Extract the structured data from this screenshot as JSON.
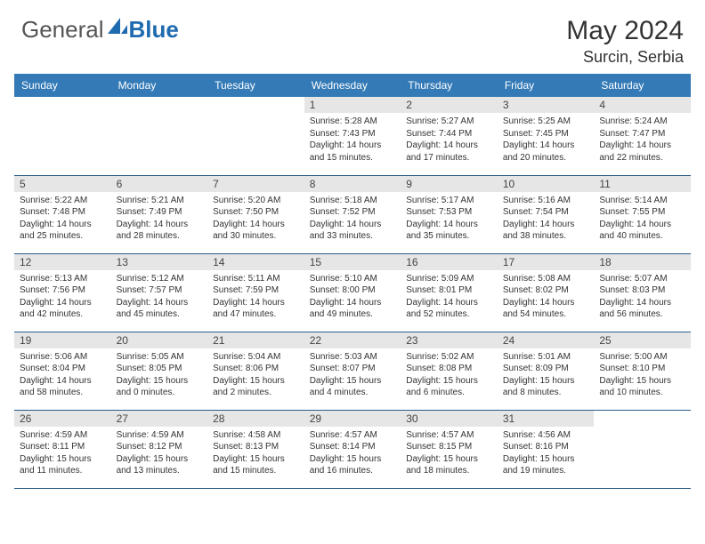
{
  "logo": {
    "text_a": "General",
    "text_b": "Blue"
  },
  "title": {
    "month_year": "May 2024",
    "location": "Surcin, Serbia"
  },
  "colors": {
    "header_bg": "#337ab7",
    "header_text": "#ffffff",
    "daynum_bg": "#e6e6e6",
    "row_border": "#2a5c8a",
    "logo_gray": "#555555",
    "logo_blue": "#1f6bb0"
  },
  "day_names": [
    "Sunday",
    "Monday",
    "Tuesday",
    "Wednesday",
    "Thursday",
    "Friday",
    "Saturday"
  ],
  "weeks": [
    [
      {
        "day": "",
        "sunrise": "",
        "sunset": "",
        "daylight_a": "",
        "daylight_b": ""
      },
      {
        "day": "",
        "sunrise": "",
        "sunset": "",
        "daylight_a": "",
        "daylight_b": ""
      },
      {
        "day": "",
        "sunrise": "",
        "sunset": "",
        "daylight_a": "",
        "daylight_b": ""
      },
      {
        "day": "1",
        "sunrise": "Sunrise: 5:28 AM",
        "sunset": "Sunset: 7:43 PM",
        "daylight_a": "Daylight: 14 hours",
        "daylight_b": "and 15 minutes."
      },
      {
        "day": "2",
        "sunrise": "Sunrise: 5:27 AM",
        "sunset": "Sunset: 7:44 PM",
        "daylight_a": "Daylight: 14 hours",
        "daylight_b": "and 17 minutes."
      },
      {
        "day": "3",
        "sunrise": "Sunrise: 5:25 AM",
        "sunset": "Sunset: 7:45 PM",
        "daylight_a": "Daylight: 14 hours",
        "daylight_b": "and 20 minutes."
      },
      {
        "day": "4",
        "sunrise": "Sunrise: 5:24 AM",
        "sunset": "Sunset: 7:47 PM",
        "daylight_a": "Daylight: 14 hours",
        "daylight_b": "and 22 minutes."
      }
    ],
    [
      {
        "day": "5",
        "sunrise": "Sunrise: 5:22 AM",
        "sunset": "Sunset: 7:48 PM",
        "daylight_a": "Daylight: 14 hours",
        "daylight_b": "and 25 minutes."
      },
      {
        "day": "6",
        "sunrise": "Sunrise: 5:21 AM",
        "sunset": "Sunset: 7:49 PM",
        "daylight_a": "Daylight: 14 hours",
        "daylight_b": "and 28 minutes."
      },
      {
        "day": "7",
        "sunrise": "Sunrise: 5:20 AM",
        "sunset": "Sunset: 7:50 PM",
        "daylight_a": "Daylight: 14 hours",
        "daylight_b": "and 30 minutes."
      },
      {
        "day": "8",
        "sunrise": "Sunrise: 5:18 AM",
        "sunset": "Sunset: 7:52 PM",
        "daylight_a": "Daylight: 14 hours",
        "daylight_b": "and 33 minutes."
      },
      {
        "day": "9",
        "sunrise": "Sunrise: 5:17 AM",
        "sunset": "Sunset: 7:53 PM",
        "daylight_a": "Daylight: 14 hours",
        "daylight_b": "and 35 minutes."
      },
      {
        "day": "10",
        "sunrise": "Sunrise: 5:16 AM",
        "sunset": "Sunset: 7:54 PM",
        "daylight_a": "Daylight: 14 hours",
        "daylight_b": "and 38 minutes."
      },
      {
        "day": "11",
        "sunrise": "Sunrise: 5:14 AM",
        "sunset": "Sunset: 7:55 PM",
        "daylight_a": "Daylight: 14 hours",
        "daylight_b": "and 40 minutes."
      }
    ],
    [
      {
        "day": "12",
        "sunrise": "Sunrise: 5:13 AM",
        "sunset": "Sunset: 7:56 PM",
        "daylight_a": "Daylight: 14 hours",
        "daylight_b": "and 42 minutes."
      },
      {
        "day": "13",
        "sunrise": "Sunrise: 5:12 AM",
        "sunset": "Sunset: 7:57 PM",
        "daylight_a": "Daylight: 14 hours",
        "daylight_b": "and 45 minutes."
      },
      {
        "day": "14",
        "sunrise": "Sunrise: 5:11 AM",
        "sunset": "Sunset: 7:59 PM",
        "daylight_a": "Daylight: 14 hours",
        "daylight_b": "and 47 minutes."
      },
      {
        "day": "15",
        "sunrise": "Sunrise: 5:10 AM",
        "sunset": "Sunset: 8:00 PM",
        "daylight_a": "Daylight: 14 hours",
        "daylight_b": "and 49 minutes."
      },
      {
        "day": "16",
        "sunrise": "Sunrise: 5:09 AM",
        "sunset": "Sunset: 8:01 PM",
        "daylight_a": "Daylight: 14 hours",
        "daylight_b": "and 52 minutes."
      },
      {
        "day": "17",
        "sunrise": "Sunrise: 5:08 AM",
        "sunset": "Sunset: 8:02 PM",
        "daylight_a": "Daylight: 14 hours",
        "daylight_b": "and 54 minutes."
      },
      {
        "day": "18",
        "sunrise": "Sunrise: 5:07 AM",
        "sunset": "Sunset: 8:03 PM",
        "daylight_a": "Daylight: 14 hours",
        "daylight_b": "and 56 minutes."
      }
    ],
    [
      {
        "day": "19",
        "sunrise": "Sunrise: 5:06 AM",
        "sunset": "Sunset: 8:04 PM",
        "daylight_a": "Daylight: 14 hours",
        "daylight_b": "and 58 minutes."
      },
      {
        "day": "20",
        "sunrise": "Sunrise: 5:05 AM",
        "sunset": "Sunset: 8:05 PM",
        "daylight_a": "Daylight: 15 hours",
        "daylight_b": "and 0 minutes."
      },
      {
        "day": "21",
        "sunrise": "Sunrise: 5:04 AM",
        "sunset": "Sunset: 8:06 PM",
        "daylight_a": "Daylight: 15 hours",
        "daylight_b": "and 2 minutes."
      },
      {
        "day": "22",
        "sunrise": "Sunrise: 5:03 AM",
        "sunset": "Sunset: 8:07 PM",
        "daylight_a": "Daylight: 15 hours",
        "daylight_b": "and 4 minutes."
      },
      {
        "day": "23",
        "sunrise": "Sunrise: 5:02 AM",
        "sunset": "Sunset: 8:08 PM",
        "daylight_a": "Daylight: 15 hours",
        "daylight_b": "and 6 minutes."
      },
      {
        "day": "24",
        "sunrise": "Sunrise: 5:01 AM",
        "sunset": "Sunset: 8:09 PM",
        "daylight_a": "Daylight: 15 hours",
        "daylight_b": "and 8 minutes."
      },
      {
        "day": "25",
        "sunrise": "Sunrise: 5:00 AM",
        "sunset": "Sunset: 8:10 PM",
        "daylight_a": "Daylight: 15 hours",
        "daylight_b": "and 10 minutes."
      }
    ],
    [
      {
        "day": "26",
        "sunrise": "Sunrise: 4:59 AM",
        "sunset": "Sunset: 8:11 PM",
        "daylight_a": "Daylight: 15 hours",
        "daylight_b": "and 11 minutes."
      },
      {
        "day": "27",
        "sunrise": "Sunrise: 4:59 AM",
        "sunset": "Sunset: 8:12 PM",
        "daylight_a": "Daylight: 15 hours",
        "daylight_b": "and 13 minutes."
      },
      {
        "day": "28",
        "sunrise": "Sunrise: 4:58 AM",
        "sunset": "Sunset: 8:13 PM",
        "daylight_a": "Daylight: 15 hours",
        "daylight_b": "and 15 minutes."
      },
      {
        "day": "29",
        "sunrise": "Sunrise: 4:57 AM",
        "sunset": "Sunset: 8:14 PM",
        "daylight_a": "Daylight: 15 hours",
        "daylight_b": "and 16 minutes."
      },
      {
        "day": "30",
        "sunrise": "Sunrise: 4:57 AM",
        "sunset": "Sunset: 8:15 PM",
        "daylight_a": "Daylight: 15 hours",
        "daylight_b": "and 18 minutes."
      },
      {
        "day": "31",
        "sunrise": "Sunrise: 4:56 AM",
        "sunset": "Sunset: 8:16 PM",
        "daylight_a": "Daylight: 15 hours",
        "daylight_b": "and 19 minutes."
      },
      {
        "day": "",
        "sunrise": "",
        "sunset": "",
        "daylight_a": "",
        "daylight_b": ""
      }
    ]
  ]
}
